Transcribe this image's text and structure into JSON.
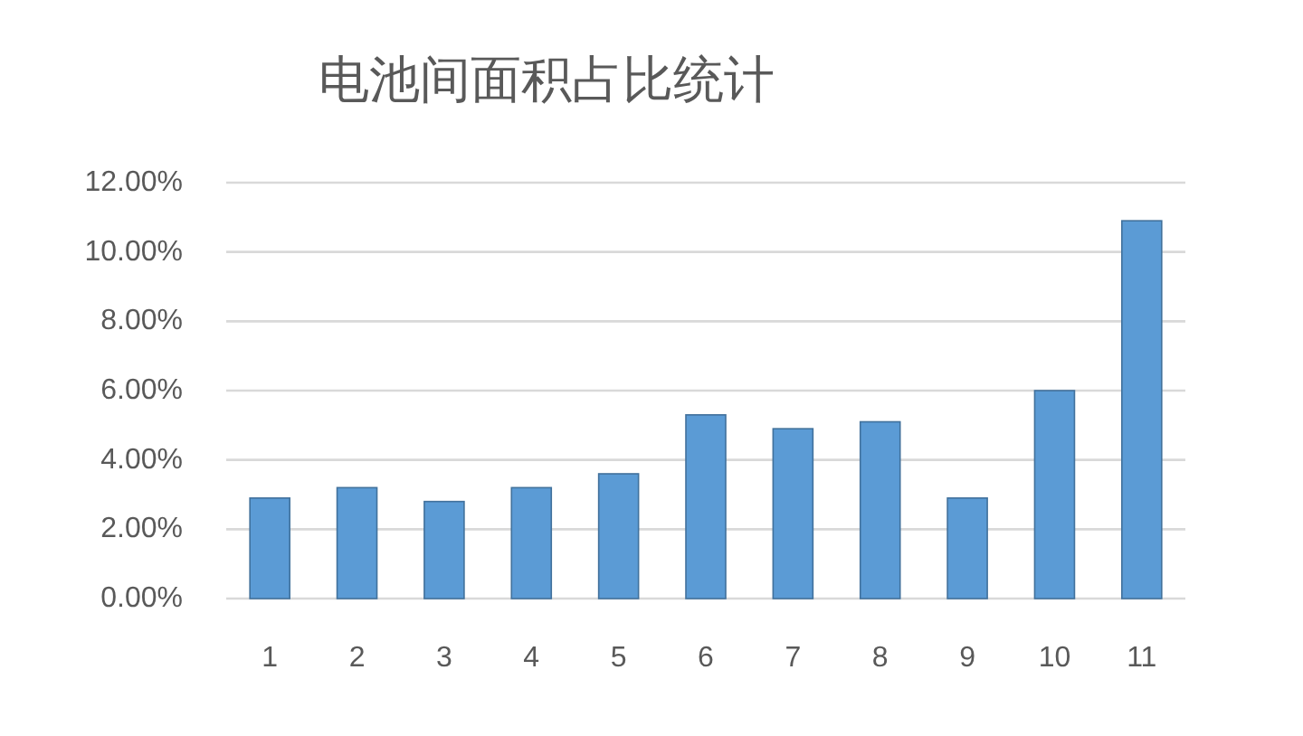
{
  "chart_data": {
    "type": "bar",
    "title": "电池间面积占比统计",
    "categories": [
      "1",
      "2",
      "3",
      "4",
      "5",
      "6",
      "7",
      "8",
      "9",
      "10",
      "11"
    ],
    "values": [
      2.9,
      3.2,
      2.8,
      3.2,
      3.6,
      5.3,
      4.9,
      5.1,
      2.9,
      6.0,
      10.9
    ],
    "color": "#5b9bd5",
    "ylim": [
      0,
      12
    ],
    "yticks": [
      {
        "value": 0,
        "label": "0.00%"
      },
      {
        "value": 2,
        "label": "2.00%"
      },
      {
        "value": 4,
        "label": "4.00%"
      },
      {
        "value": 6,
        "label": "6.00%"
      },
      {
        "value": 8,
        "label": "8.00%"
      },
      {
        "value": 10,
        "label": "10.00%"
      },
      {
        "value": 12,
        "label": "12.00%"
      }
    ],
    "grid": "y"
  }
}
